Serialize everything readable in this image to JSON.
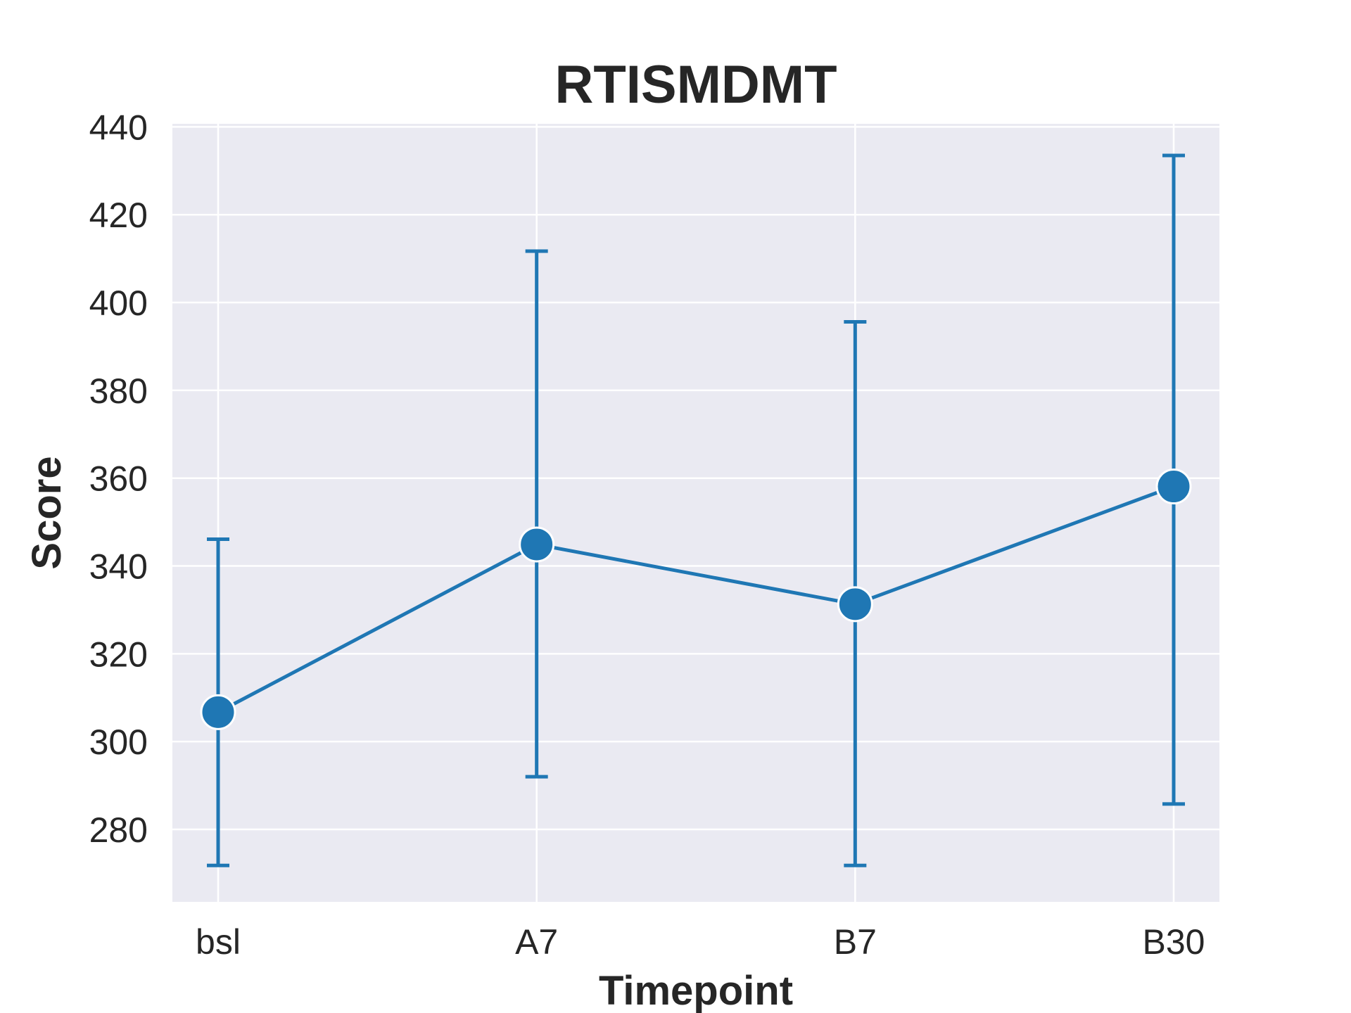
{
  "chart_data": {
    "type": "line",
    "title": "RTISMDMT",
    "xlabel": "Timepoint",
    "ylabel": "Score",
    "categories": [
      "bsl",
      "A7",
      "B7",
      "B30"
    ],
    "values": [
      306.7,
      344.9,
      331.3,
      358.1
    ],
    "error_low": [
      271.8,
      292.0,
      271.8,
      285.8
    ],
    "error_high": [
      346.1,
      411.7,
      395.6,
      433.5
    ],
    "yticks": [
      280,
      300,
      320,
      340,
      360,
      380,
      400,
      420,
      440
    ],
    "ylim": [
      263.5,
      440.7
    ],
    "grid": true,
    "color": "#1f77b4",
    "background": "#eaeaf2"
  }
}
